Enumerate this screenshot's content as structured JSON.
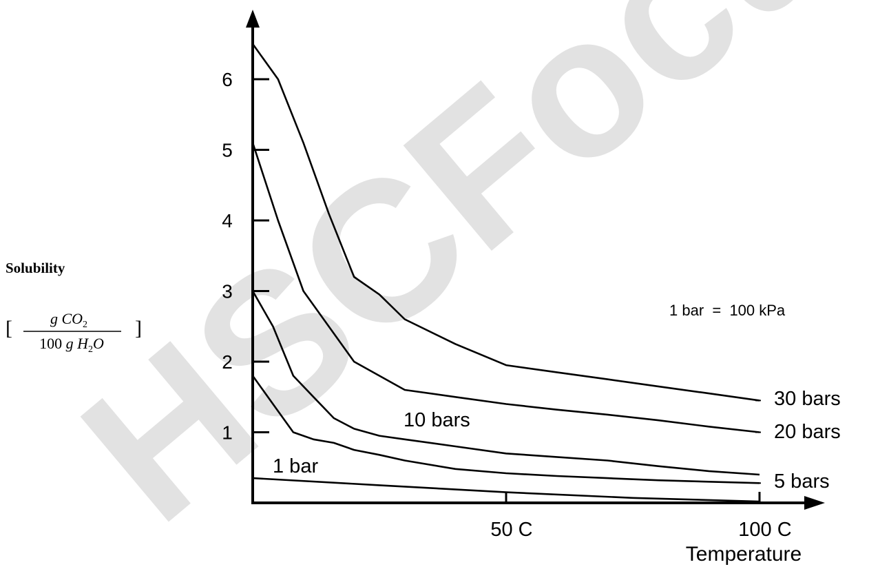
{
  "watermark": {
    "text": "HSCFocus",
    "color": "#d9d9d9"
  },
  "chart_data": {
    "type": "line",
    "title": "",
    "xlabel": "Temperature",
    "ylabel": "Solubility",
    "ylabel_unit": {
      "open_bracket": "[",
      "numerator": {
        "g": "g",
        "compound": "CO",
        "subscript": "2"
      },
      "denominator": {
        "coef": "100",
        "g": "g",
        "compound_a": "H",
        "subscript": "2",
        "compound_b": "O"
      },
      "close_bracket": "]"
    },
    "annotation": "1 bar  =  100 kPa",
    "xlim": [
      0,
      100
    ],
    "ylim": [
      0,
      6.6
    ],
    "x_ticks": [
      {
        "value": 50,
        "label": "50 C"
      },
      {
        "value": 100,
        "label": "100 C"
      }
    ],
    "y_ticks": [
      {
        "value": 1,
        "label": "1"
      },
      {
        "value": 2,
        "label": "2"
      },
      {
        "value": 3,
        "label": "3"
      },
      {
        "value": 4,
        "label": "4"
      },
      {
        "value": 5,
        "label": "5"
      },
      {
        "value": 6,
        "label": "6"
      }
    ],
    "grid": false,
    "line_color": "#000000",
    "series": [
      {
        "name": "30 bars",
        "x": [
          0,
          5,
          10,
          15,
          20,
          25,
          30,
          40,
          50,
          60,
          70,
          80,
          90,
          100
        ],
        "y": [
          6.5,
          6.0,
          5.1,
          4.1,
          3.2,
          2.95,
          2.6,
          2.25,
          1.95,
          1.85,
          1.75,
          1.65,
          1.55,
          1.45
        ]
      },
      {
        "name": "20 bars",
        "x": [
          0,
          5,
          10,
          15,
          20,
          25,
          30,
          40,
          50,
          60,
          70,
          80,
          90,
          100
        ],
        "y": [
          5.1,
          4.0,
          3.0,
          2.5,
          2.0,
          1.8,
          1.6,
          1.5,
          1.4,
          1.32,
          1.25,
          1.17,
          1.08,
          1.0
        ]
      },
      {
        "name": "10 bars",
        "x": [
          0,
          4,
          8,
          12,
          16,
          20,
          25,
          30,
          40,
          50,
          60,
          70,
          80,
          90,
          100
        ],
        "y": [
          3.0,
          2.5,
          1.8,
          1.5,
          1.2,
          1.05,
          0.95,
          0.9,
          0.8,
          0.7,
          0.65,
          0.6,
          0.52,
          0.45,
          0.4
        ]
      },
      {
        "name": "5 bars",
        "x": [
          0,
          4,
          8,
          12,
          16,
          20,
          25,
          30,
          40,
          50,
          60,
          70,
          80,
          90,
          100
        ],
        "y": [
          1.8,
          1.4,
          1.0,
          0.9,
          0.85,
          0.75,
          0.68,
          0.6,
          0.48,
          0.42,
          0.38,
          0.35,
          0.32,
          0.3,
          0.28
        ]
      },
      {
        "name": "1 bar",
        "x": [
          0,
          25,
          50,
          75,
          100
        ],
        "y": [
          0.35,
          0.25,
          0.15,
          0.07,
          0.02
        ]
      }
    ],
    "series_labels": [
      {
        "name": "30 bars",
        "text": "30 bars"
      },
      {
        "name": "20 bars",
        "text": "20 bars"
      },
      {
        "name": "10 bars",
        "text": "10 bars"
      },
      {
        "name": "5 bars",
        "text": "5 bars"
      },
      {
        "name": "1 bar",
        "text": "1 bar"
      }
    ]
  }
}
